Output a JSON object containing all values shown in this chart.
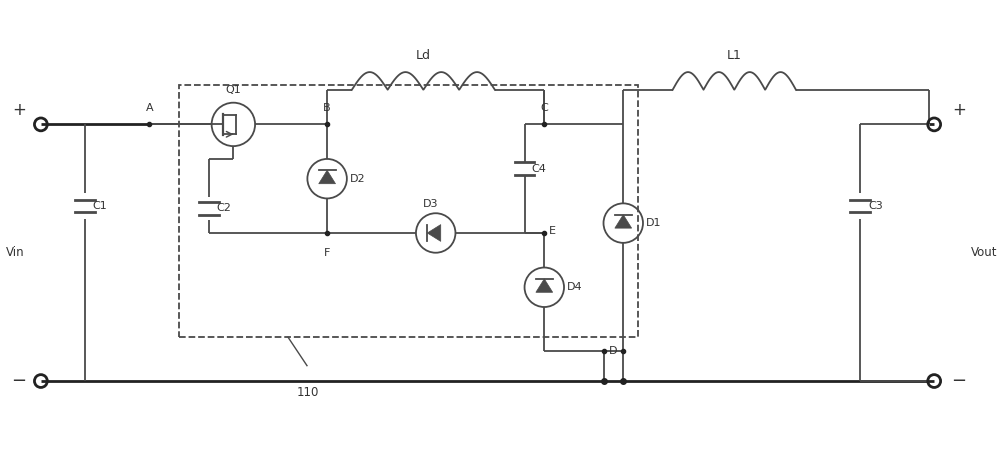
{
  "bg_color": "#ffffff",
  "lc": "#4a4a4a",
  "tlc": "#222222",
  "tc": "#333333",
  "fig_width": 10.0,
  "fig_height": 4.63,
  "dpi": 100,
  "xlim": [
    0,
    100
  ],
  "ylim": [
    0,
    46.3
  ]
}
